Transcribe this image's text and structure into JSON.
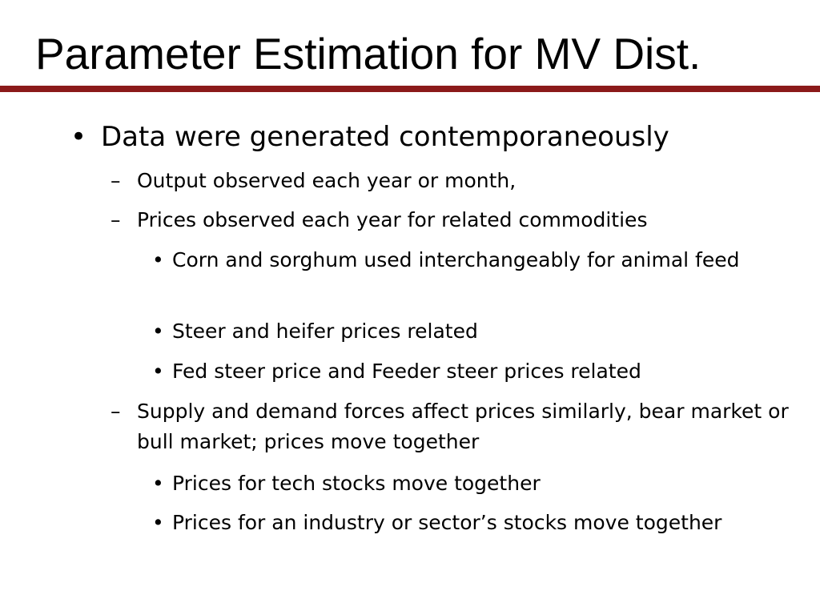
{
  "slide": {
    "title": "Parameter Estimation for MV Dist.",
    "accent_color": "#8b1a1a",
    "bullets": [
      {
        "marker": "•",
        "text": "Data were generated contemporaneously",
        "children": [
          {
            "marker": "–",
            "text": "Output observed each year or month,"
          },
          {
            "marker": "–",
            "text": "Prices observed each year for related commodities",
            "children": [
              {
                "marker": "•",
                "text": "Corn and sorghum used interchangeably for animal feed"
              },
              {
                "marker": "•",
                "text": "Steer and heifer prices related"
              },
              {
                "marker": "•",
                "text": "Fed steer price and Feeder steer prices related"
              }
            ]
          },
          {
            "marker": "–",
            "text": "Supply and demand forces affect prices similarly, bear market or bull market; prices move together",
            "children": [
              {
                "marker": "•",
                "text": "Prices for tech stocks move together"
              },
              {
                "marker": "•",
                "text": "Prices for an industry or sector’s stocks move together"
              }
            ]
          }
        ]
      }
    ]
  }
}
